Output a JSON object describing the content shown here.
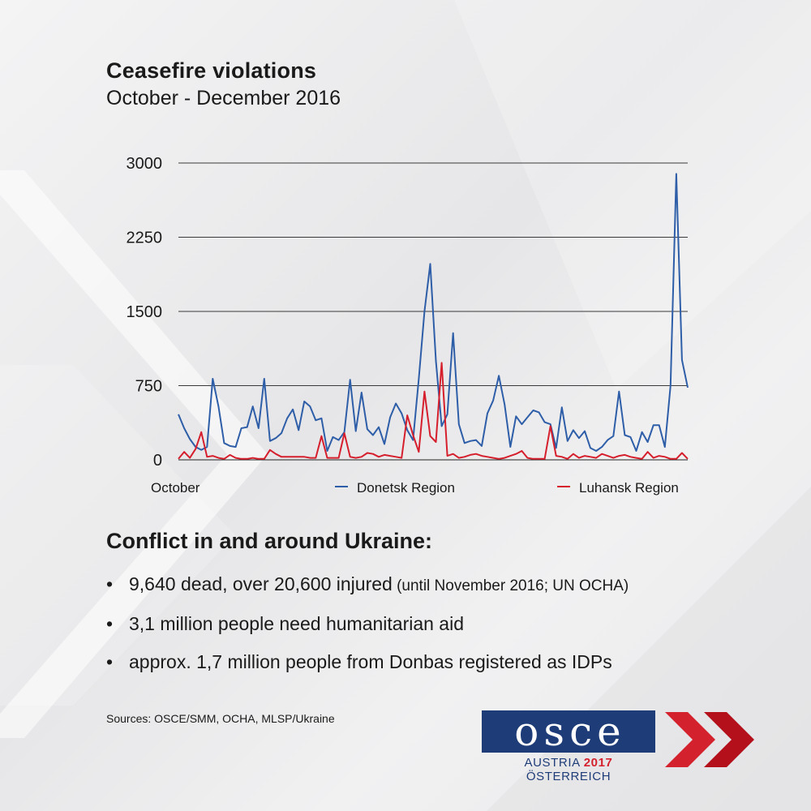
{
  "header": {
    "title": "Ceasefire violations",
    "subtitle": "October - December 2016"
  },
  "chart_data": {
    "type": "line",
    "title": "Ceasefire violations",
    "subtitle": "October - December 2016",
    "x_start_label": "October",
    "ylim": [
      0,
      3000
    ],
    "y_ticks": [
      "3000",
      "2250",
      "1500",
      "750",
      "0"
    ],
    "grid": true,
    "legend_position": "bottom",
    "series": [
      {
        "name": "Donetsk Region",
        "color": "#2e5ea8",
        "values": [
          460,
          320,
          210,
          130,
          100,
          130,
          820,
          540,
          170,
          140,
          130,
          320,
          330,
          540,
          320,
          820,
          190,
          220,
          270,
          420,
          510,
          300,
          590,
          540,
          400,
          420,
          90,
          230,
          200,
          280,
          810,
          290,
          680,
          310,
          250,
          330,
          160,
          430,
          570,
          470,
          300,
          200,
          820,
          1500,
          1980,
          1000,
          340,
          460,
          1280,
          360,
          170,
          190,
          200,
          140,
          470,
          600,
          850,
          560,
          130,
          440,
          360,
          430,
          500,
          480,
          380,
          360,
          120,
          530,
          190,
          300,
          220,
          290,
          120,
          90,
          130,
          200,
          240,
          690,
          250,
          230,
          90,
          280,
          180,
          350,
          350,
          130,
          750,
          2890,
          1010,
          730
        ]
      },
      {
        "name": "Luhansk Region",
        "color": "#d61f2c",
        "values": [
          10,
          80,
          20,
          110,
          280,
          30,
          40,
          20,
          10,
          50,
          20,
          10,
          10,
          20,
          10,
          10,
          100,
          60,
          30,
          30,
          30,
          30,
          30,
          20,
          20,
          240,
          20,
          20,
          20,
          270,
          30,
          20,
          30,
          70,
          60,
          30,
          50,
          40,
          30,
          20,
          450,
          250,
          80,
          690,
          240,
          180,
          980,
          40,
          60,
          20,
          30,
          50,
          60,
          40,
          30,
          20,
          10,
          20,
          40,
          60,
          90,
          20,
          10,
          10,
          10,
          340,
          40,
          30,
          10,
          60,
          20,
          40,
          30,
          20,
          60,
          40,
          20,
          40,
          50,
          30,
          20,
          10,
          80,
          20,
          40,
          30,
          10,
          10,
          70,
          10
        ]
      }
    ]
  },
  "facts": {
    "heading": "Conflict in and around Ukraine:",
    "items": [
      {
        "bullet": "•",
        "text": "9,640 dead, over 20,600 injured",
        "note": " (until November 2016; UN OCHA)"
      },
      {
        "bullet": "•",
        "text": "3,1 million people need humanitarian aid",
        "note": ""
      },
      {
        "bullet": "•",
        "text": "approx. 1,7 million people from Donbas registered as IDPs",
        "note": ""
      }
    ]
  },
  "footer": {
    "sources": "Sources: OSCE/SMM, OCHA, MLSP/Ukraine"
  },
  "logo": {
    "letters": [
      "o",
      "s",
      "c",
      "e"
    ],
    "sub_left": "AUSTRIA",
    "sub_year": "2017",
    "sub_right": "ÖSTERREICH"
  },
  "colors": {
    "logo_blue": "#1e3c78",
    "accent_red": "#d4212e"
  }
}
